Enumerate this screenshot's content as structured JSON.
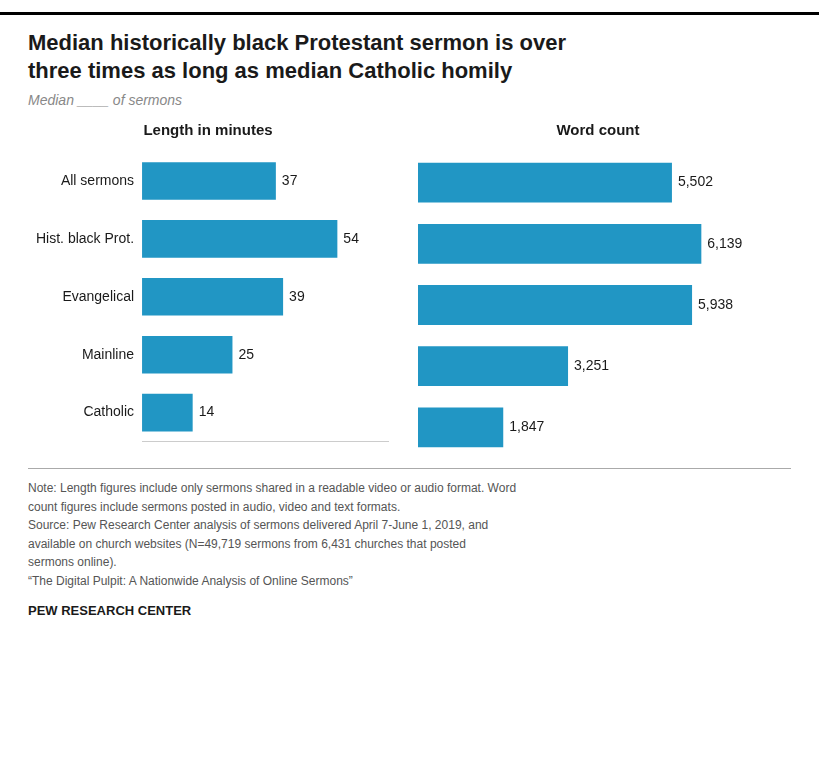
{
  "title": "Median historically black Protestant sermon is over\nthree times as long as median Catholic homily",
  "subtitle": "Median ____ of sermons",
  "annotations": [
    "Note: Length figures include only sermons shared in a readable video or audio format. Word",
    "count figures include sermons posted in audio, video and text formats.",
    "Source: Pew Research Center analysis of sermons delivered April 7-June 1, 2019, and",
    "available on church websites (N=49,719 sermons from 6,431 churches that posted",
    "sermons online).",
    "“The Digital Pulpit: A Nationwide Analysis of Online Sermons”",
    "PEW RESEARCH CENTER"
  ],
  "chart_data": [
    {
      "type": "bar",
      "orientation": "horizontal",
      "title": "Length in minutes",
      "categories": [
        "All sermons",
        "Hist. black Prot.",
        "Evangelical",
        "Mainline",
        "Catholic"
      ],
      "values": [
        37,
        54,
        39,
        25,
        14
      ],
      "color": "#2196C4",
      "xlim": [
        0,
        68
      ],
      "grid": false,
      "data_labels": true,
      "tick_labels": "y"
    },
    {
      "type": "bar",
      "orientation": "horizontal",
      "title": "Word count",
      "categories": [
        "All sermons",
        "Hist. black Prot.",
        "Evangelical",
        "Mainline",
        "Catholic"
      ],
      "values": [
        5502,
        6139,
        5938,
        3251,
        1847
      ],
      "value_labels": [
        "5,502",
        "6,139",
        "5,938",
        "3,251",
        "1,847"
      ],
      "color": "#2196C4",
      "xlim": [
        0,
        7800
      ],
      "grid": false,
      "data_labels": true,
      "tick_labels": false
    }
  ]
}
